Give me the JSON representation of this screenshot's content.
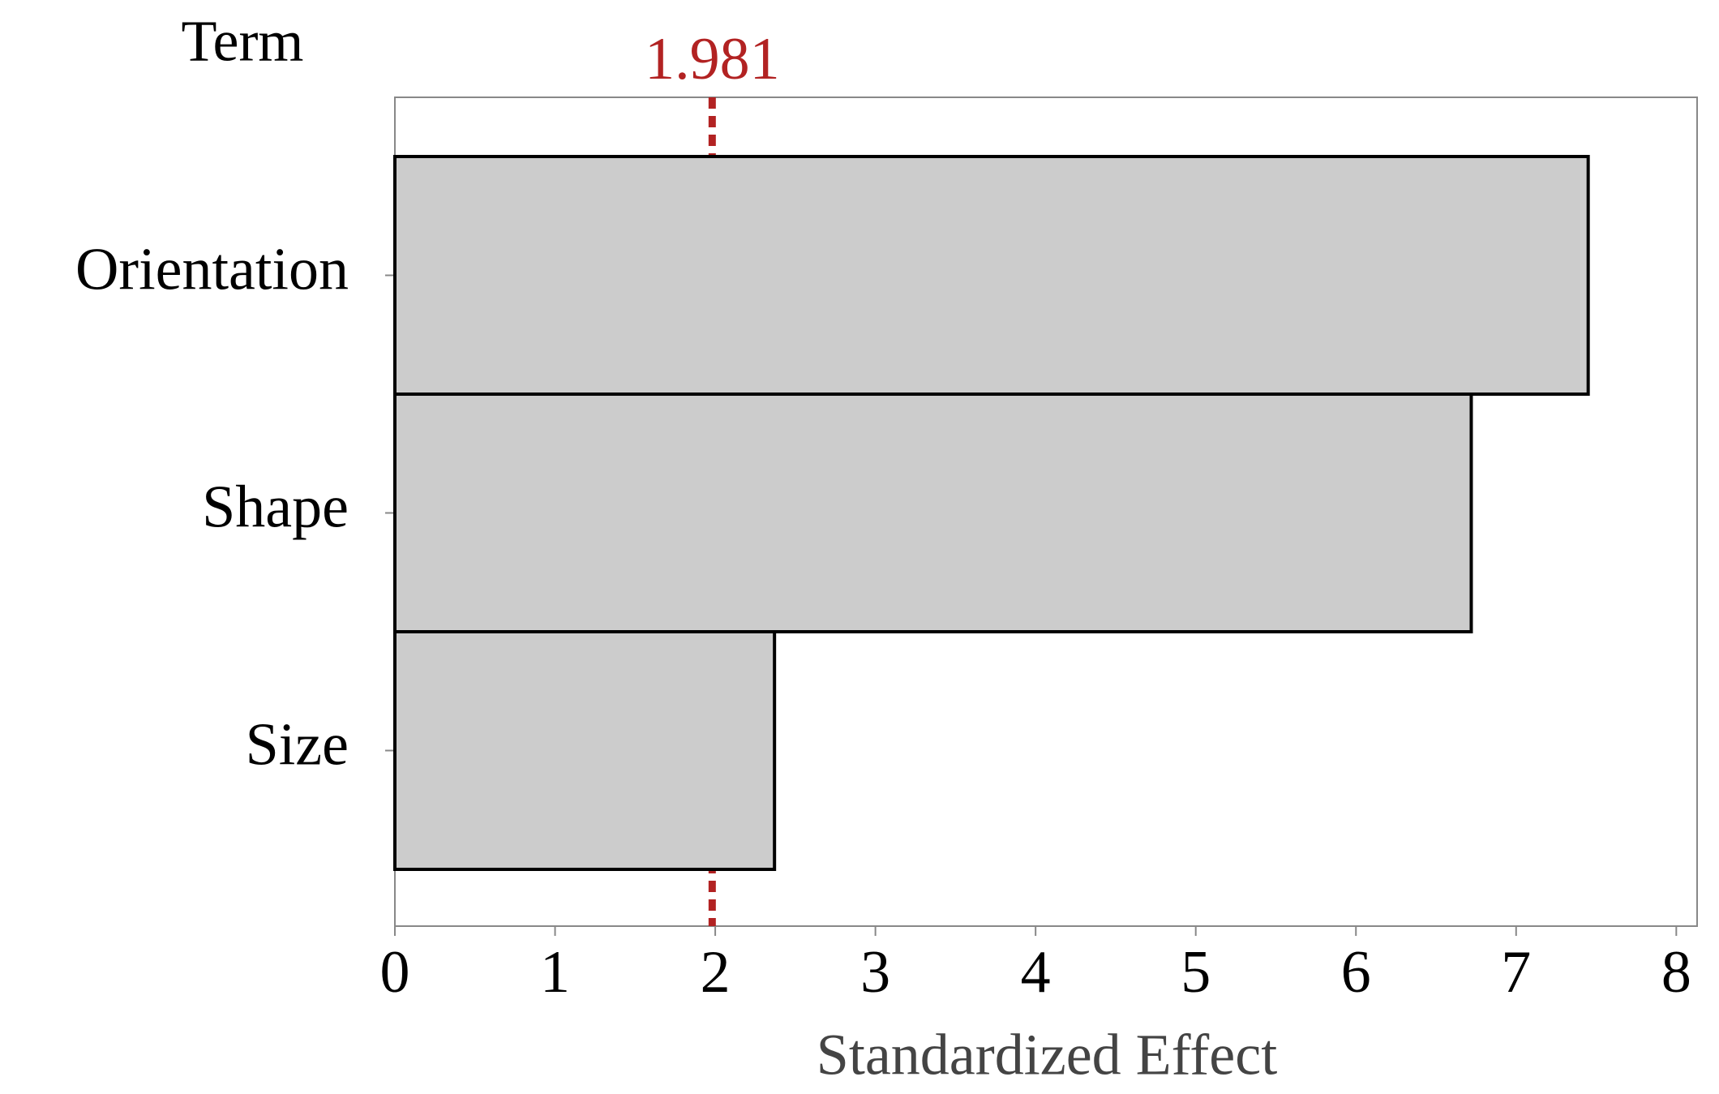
{
  "chart_data": {
    "type": "bar",
    "orientation": "horizontal",
    "y_axis_title": "Term",
    "x_axis_title": "Standardized Effect",
    "categories": [
      "Orientation",
      "Shape",
      "Size"
    ],
    "values": [
      7.45,
      6.72,
      2.37
    ],
    "color": "#cccccc",
    "reference_line": 1.981,
    "reference_color": "#b22222",
    "xlim": [
      0,
      8.13
    ],
    "xticks": [
      0,
      1,
      2,
      3,
      4,
      5,
      6,
      7,
      8
    ]
  }
}
